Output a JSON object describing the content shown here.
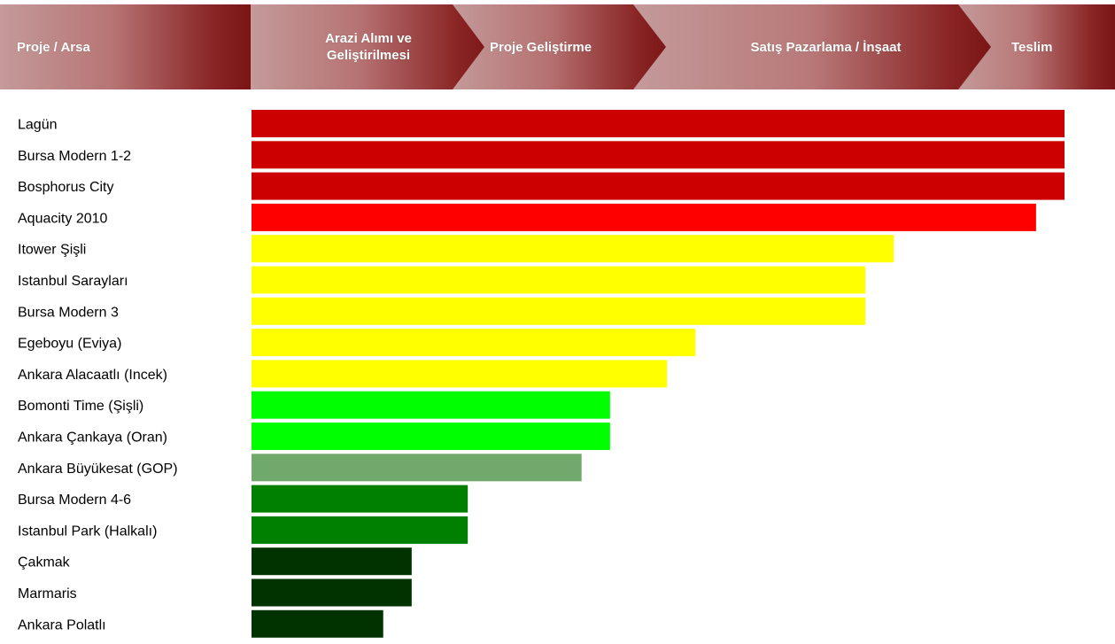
{
  "header": {
    "stages": [
      "Proje / Arsa",
      "Arazi Alımı ve Geliştirilmesi",
      "Proje Geliştirme",
      "Satış Pazarlama / İnşaat",
      "Teslim"
    ],
    "stage_colors": {
      "light": "#c49a9a",
      "dark": "#7a1515"
    }
  },
  "chart_data": {
    "type": "bar",
    "orientation": "horizontal",
    "title": "",
    "xlabel": "",
    "ylabel": "",
    "xlim": [
      0,
      100
    ],
    "grid": false,
    "legend": "none",
    "categories": [
      "Lagün",
      "Bursa Modern 1-2",
      "Bosphorus City",
      "Aquacity 2010",
      "Itower Şişli",
      "Istanbul Sarayları",
      "Bursa Modern 3",
      "Egeboyu (Eviya)",
      "Ankara Alacaatlı (Incek)",
      "Bomonti Time (Şişli)",
      "Ankara Çankaya (Oran)",
      "Ankara Büyükesat (GOP)",
      "Bursa Modern 4-6",
      "Istanbul Park (Halkalı)",
      "Çakmak",
      "Marmaris",
      "Ankara Polatlı"
    ],
    "values": [
      100,
      100,
      100,
      96.5,
      79,
      75.5,
      75.5,
      54.6,
      51.1,
      44.1,
      44.1,
      40.6,
      26.6,
      26.6,
      19.7,
      19.7,
      16.2
    ],
    "colors": [
      "#cc0000",
      "#cc0000",
      "#cc0000",
      "#ff0000",
      "#ffff00",
      "#ffff00",
      "#ffff00",
      "#ffff00",
      "#ffff00",
      "#00ff00",
      "#00ff00",
      "#70a96b",
      "#008000",
      "#008000",
      "#003300",
      "#003300",
      "#003300"
    ]
  }
}
